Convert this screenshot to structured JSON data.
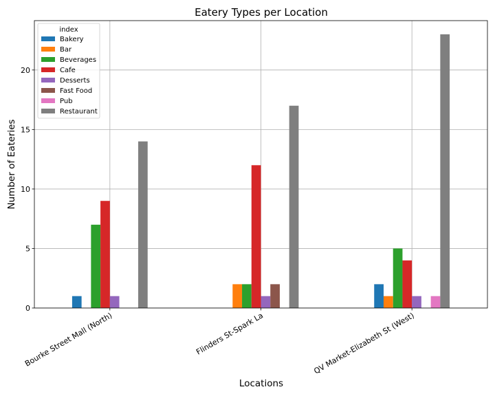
{
  "chart_data": {
    "type": "bar",
    "title": "Eatery Types per Location",
    "xlabel": "Locations",
    "ylabel": "Number of Eateries",
    "categories": [
      "Bourke Street Mall (North)",
      "Flinders St-Spark La",
      "QV Market-Elizabeth St (West)"
    ],
    "ylim": [
      0,
      24.15
    ],
    "yticks": [
      0,
      5,
      10,
      15,
      20
    ],
    "grid": true,
    "legend": {
      "title": "index",
      "position": "top-left"
    },
    "series": [
      {
        "name": "Bakery",
        "color": "#1f77b4",
        "values": [
          1,
          0,
          2
        ]
      },
      {
        "name": "Bar",
        "color": "#ff7f0e",
        "values": [
          0,
          2,
          1
        ]
      },
      {
        "name": "Beverages",
        "color": "#2ca02c",
        "values": [
          7,
          2,
          5
        ]
      },
      {
        "name": "Cafe",
        "color": "#d62728",
        "values": [
          9,
          12,
          4
        ]
      },
      {
        "name": "Desserts",
        "color": "#9467bd",
        "values": [
          1,
          1,
          1
        ]
      },
      {
        "name": "Fast Food",
        "color": "#8c564b",
        "values": [
          0,
          2,
          0
        ]
      },
      {
        "name": "Pub",
        "color": "#e377c2",
        "values": [
          0,
          0,
          1
        ]
      },
      {
        "name": "Restaurant",
        "color": "#7f7f7f",
        "values": [
          14,
          17,
          23
        ]
      }
    ]
  }
}
